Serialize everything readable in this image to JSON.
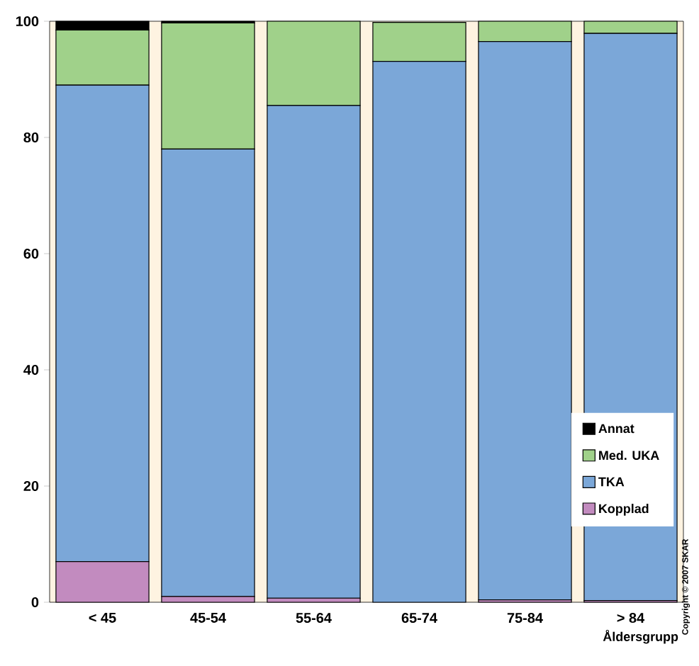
{
  "chart_data": {
    "type": "bar",
    "stacked": true,
    "xlabel": "Åldersgrupp",
    "categories": [
      "< 45",
      "45-54",
      "55-64",
      "65-74",
      "75-84",
      "> 84"
    ],
    "series": [
      {
        "name": "Kopplad",
        "color": "#c28bbf",
        "values": [
          7,
          1,
          0.7,
          null,
          0.4,
          0.3
        ]
      },
      {
        "name": "TKA",
        "color": "#7ba7d8",
        "values": [
          82,
          77,
          84.8,
          93.1,
          96.1,
          97.6
        ]
      },
      {
        "name": "Med. UKA",
        "color": "#a0d18a",
        "values": [
          9.5,
          21.7,
          14.5,
          6.7,
          3.5,
          2.1
        ]
      },
      {
        "name": "Annat",
        "color": "#000000",
        "values": [
          1.5,
          0.3,
          0,
          0,
          0,
          0
        ]
      }
    ],
    "ylim": [
      0,
      100
    ],
    "yticks": [
      0,
      20,
      40,
      60,
      80,
      100
    ],
    "grid": false,
    "legend": "bottom right",
    "annotations": [
      "Copyright © 2007 SKAR"
    ]
  }
}
